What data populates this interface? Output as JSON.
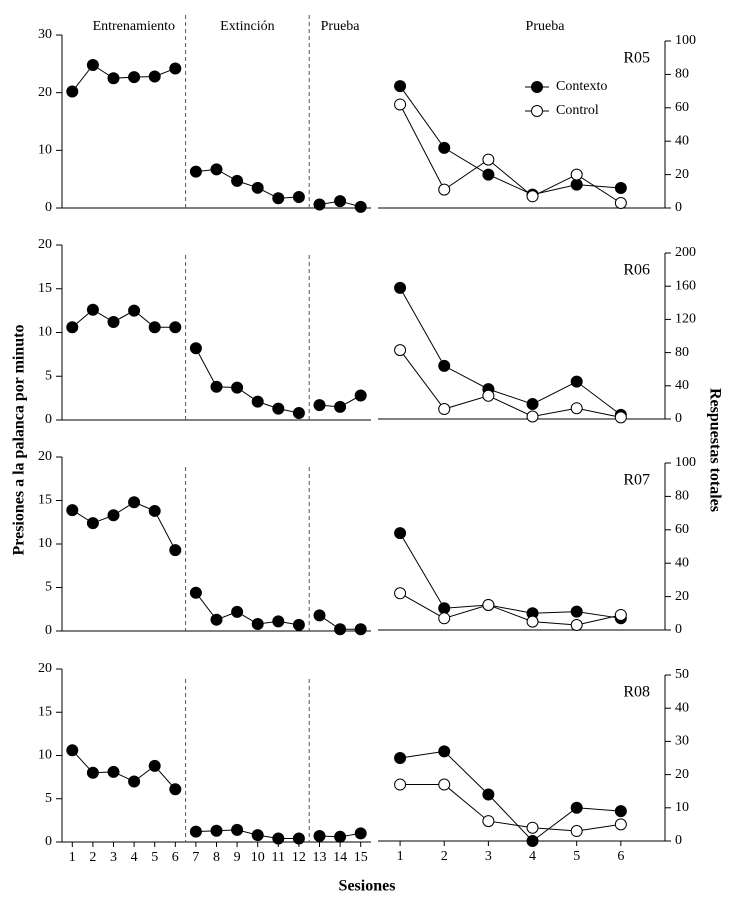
{
  "figure": {
    "phases": [
      "Entrenamiento",
      "Extinción",
      "Prueba"
    ],
    "test_title": "Prueba",
    "ylabel": "Presiones a la palanca por minuto",
    "y2label": "Respuestas totales",
    "xlabel": "Sesiones"
  },
  "chart_data": [
    {
      "type": "line",
      "dividers": true,
      "xlim": [
        0.5,
        15.5
      ],
      "ylim": [
        0,
        30
      ],
      "yticks": [
        0,
        10,
        20,
        30
      ],
      "series": [
        {
          "color": "#000000",
          "x": [
            1,
            2,
            3,
            4,
            5,
            6
          ],
          "values": [
            20.2,
            24.8,
            22.5,
            22.7,
            22.8,
            24.2
          ]
        },
        {
          "color": "#000000",
          "x": [
            7,
            8,
            9,
            10,
            11,
            12
          ],
          "values": [
            6.3,
            6.7,
            4.7,
            3.5,
            1.7,
            1.9
          ]
        },
        {
          "color": "#000000",
          "x": [
            13,
            14,
            15
          ],
          "values": [
            0.6,
            1.2,
            0.2
          ]
        }
      ]
    },
    {
      "type": "line",
      "label": "R05",
      "x": [
        1,
        2,
        3,
        4,
        5,
        6
      ],
      "xlim": [
        0.5,
        7
      ],
      "y2lim": [
        0,
        100
      ],
      "y2ticks": [
        0,
        20,
        40,
        60,
        80,
        100
      ],
      "series": [
        {
          "name": "Contexto",
          "color": "#000000",
          "axis": "y2",
          "values": [
            73,
            36,
            20,
            8,
            14,
            12
          ]
        },
        {
          "name": "Control",
          "color": "#ffffff",
          "axis": "y2",
          "values": [
            62,
            11,
            29,
            7,
            20,
            3
          ]
        }
      ]
    },
    {
      "type": "line",
      "dividers": true,
      "xlim": [
        0.5,
        15.5
      ],
      "ylim": [
        0,
        20
      ],
      "yticks": [
        0,
        5,
        10,
        15,
        20
      ],
      "series": [
        {
          "color": "#000000",
          "x": [
            1,
            2,
            3,
            4,
            5,
            6
          ],
          "values": [
            10.6,
            12.6,
            11.2,
            12.5,
            10.6,
            10.6
          ]
        },
        {
          "color": "#000000",
          "x": [
            7,
            8,
            9,
            10,
            11,
            12
          ],
          "values": [
            8.2,
            3.8,
            3.7,
            2.1,
            1.3,
            0.8
          ]
        },
        {
          "color": "#000000",
          "x": [
            13,
            14,
            15
          ],
          "values": [
            1.7,
            1.5,
            2.8
          ]
        }
      ]
    },
    {
      "type": "line",
      "label": "R06",
      "x": [
        1,
        2,
        3,
        4,
        5,
        6
      ],
      "xlim": [
        0.5,
        7
      ],
      "y2lim": [
        0,
        200
      ],
      "y2ticks": [
        0,
        40,
        80,
        120,
        160,
        200
      ],
      "series": [
        {
          "color": "#000000",
          "axis": "y2",
          "values": [
            158,
            64,
            36,
            18,
            45,
            5
          ]
        },
        {
          "color": "#ffffff",
          "axis": "y2",
          "values": [
            83,
            12,
            28,
            3,
            13,
            2
          ]
        }
      ]
    },
    {
      "type": "line",
      "dividers": true,
      "xlim": [
        0.5,
        15.5
      ],
      "ylim": [
        0,
        20
      ],
      "yticks": [
        0,
        5,
        10,
        15,
        20
      ],
      "series": [
        {
          "color": "#000000",
          "x": [
            1,
            2,
            3,
            4,
            5,
            6
          ],
          "values": [
            13.9,
            12.4,
            13.3,
            14.8,
            13.8,
            9.3
          ]
        },
        {
          "color": "#000000",
          "x": [
            7,
            8,
            9,
            10,
            11,
            12
          ],
          "values": [
            4.4,
            1.3,
            2.2,
            0.8,
            1.1,
            0.7
          ]
        },
        {
          "color": "#000000",
          "x": [
            13,
            14,
            15
          ],
          "values": [
            1.8,
            0.2,
            0.2
          ]
        }
      ]
    },
    {
      "type": "line",
      "label": "R07",
      "x": [
        1,
        2,
        3,
        4,
        5,
        6
      ],
      "xlim": [
        0.5,
        7
      ],
      "y2lim": [
        0,
        100
      ],
      "y2ticks": [
        0,
        20,
        40,
        60,
        80,
        100
      ],
      "series": [
        {
          "color": "#000000",
          "axis": "y2",
          "values": [
            58,
            13,
            15,
            10,
            11,
            7
          ]
        },
        {
          "color": "#ffffff",
          "axis": "y2",
          "values": [
            22,
            7,
            15,
            5,
            3,
            9
          ]
        }
      ]
    },
    {
      "type": "line",
      "dividers": true,
      "xlim": [
        0.5,
        15.5
      ],
      "ylim": [
        0,
        20
      ],
      "yticks": [
        0,
        5,
        10,
        15,
        20
      ],
      "xticks": [
        1,
        2,
        3,
        4,
        5,
        6,
        7,
        8,
        9,
        10,
        11,
        12,
        13,
        14,
        15
      ],
      "series": [
        {
          "color": "#000000",
          "x": [
            1,
            2,
            3,
            4,
            5,
            6
          ],
          "values": [
            10.6,
            8.0,
            8.1,
            7.0,
            8.8,
            6.1
          ]
        },
        {
          "color": "#000000",
          "x": [
            7,
            8,
            9,
            10,
            11,
            12
          ],
          "values": [
            1.2,
            1.3,
            1.4,
            0.8,
            0.4,
            0.4
          ]
        },
        {
          "color": "#000000",
          "x": [
            13,
            14,
            15
          ],
          "values": [
            0.7,
            0.6,
            1.0
          ]
        }
      ]
    },
    {
      "type": "line",
      "label": "R08",
      "x": [
        1,
        2,
        3,
        4,
        5,
        6
      ],
      "xlim": [
        0.5,
        7
      ],
      "xticks": [
        1,
        2,
        3,
        4,
        5,
        6
      ],
      "y2lim": [
        0,
        50
      ],
      "y2ticks": [
        0,
        10,
        20,
        30,
        40,
        50
      ],
      "series": [
        {
          "color": "#000000",
          "axis": "y2",
          "values": [
            25,
            27,
            14,
            0,
            10,
            9
          ]
        },
        {
          "color": "#ffffff",
          "axis": "y2",
          "values": [
            17,
            17,
            6,
            4,
            3,
            5
          ]
        }
      ]
    }
  ]
}
